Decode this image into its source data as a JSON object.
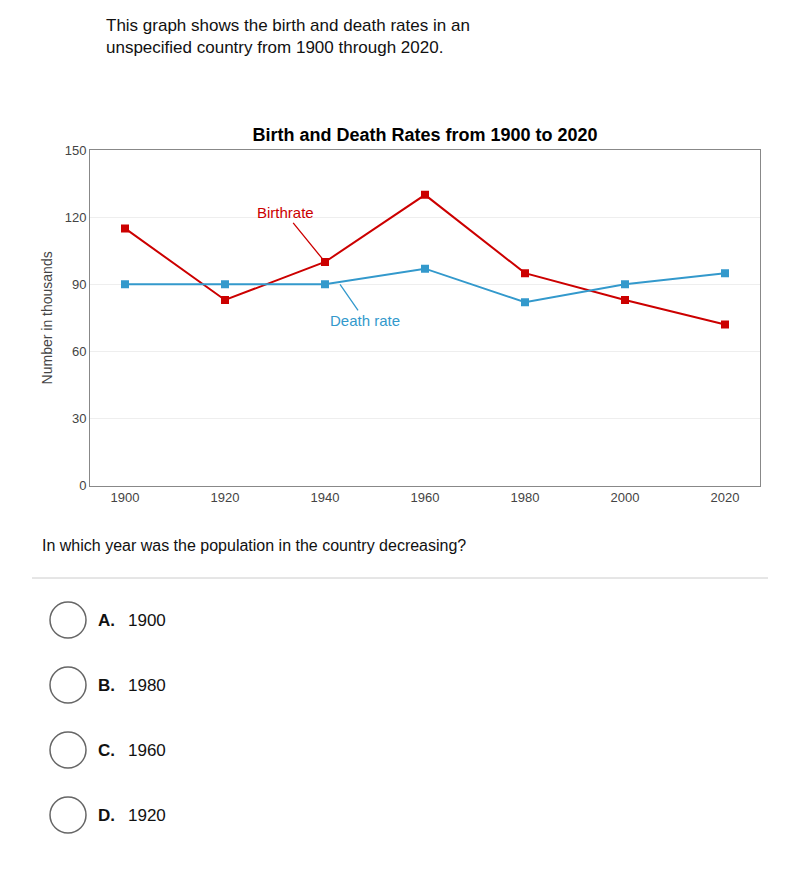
{
  "chart_data": {
    "type": "line",
    "title": "Birth and Death Rates from 1900 to 2020",
    "subtitle": [
      "This graph shows the birth and death rates in an",
      "unspecified country from 1900 through 2020."
    ],
    "ylabel": "Number in thousands",
    "x": [
      1900,
      1920,
      1940,
      1960,
      1980,
      2000,
      2020
    ],
    "series": [
      {
        "color": "#cc0000",
        "marker": "square",
        "line_style": "solid",
        "values": [
          115,
          83,
          100,
          130,
          95,
          83,
          72
        ]
      },
      {
        "color": "#3399cc",
        "marker": "square",
        "line_style": "solid",
        "values": [
          90,
          90,
          90,
          97,
          82,
          90,
          95
        ]
      }
    ],
    "annotations": [
      {
        "text": "Birthrate",
        "x": 1940,
        "y": 100,
        "color": "#cc0000"
      },
      {
        "text": "Death rate",
        "x": 1943,
        "y": 90,
        "color": "#3399cc"
      }
    ],
    "xlim": [
      1893,
      2027
    ],
    "xticks": [
      1900,
      1920,
      1940,
      1960,
      1980,
      2000,
      2020
    ],
    "ylim": [
      0,
      150
    ],
    "yticks": [
      0,
      30,
      60,
      90,
      120,
      150
    ],
    "grid": "y",
    "question": "In which year was the population in the country decreasing?",
    "options": [
      {
        "letter": "A.",
        "text": "1900"
      },
      {
        "letter": "B.",
        "text": "1980"
      },
      {
        "letter": "C.",
        "text": "1960"
      },
      {
        "letter": "D.",
        "text": "1920"
      }
    ]
  }
}
